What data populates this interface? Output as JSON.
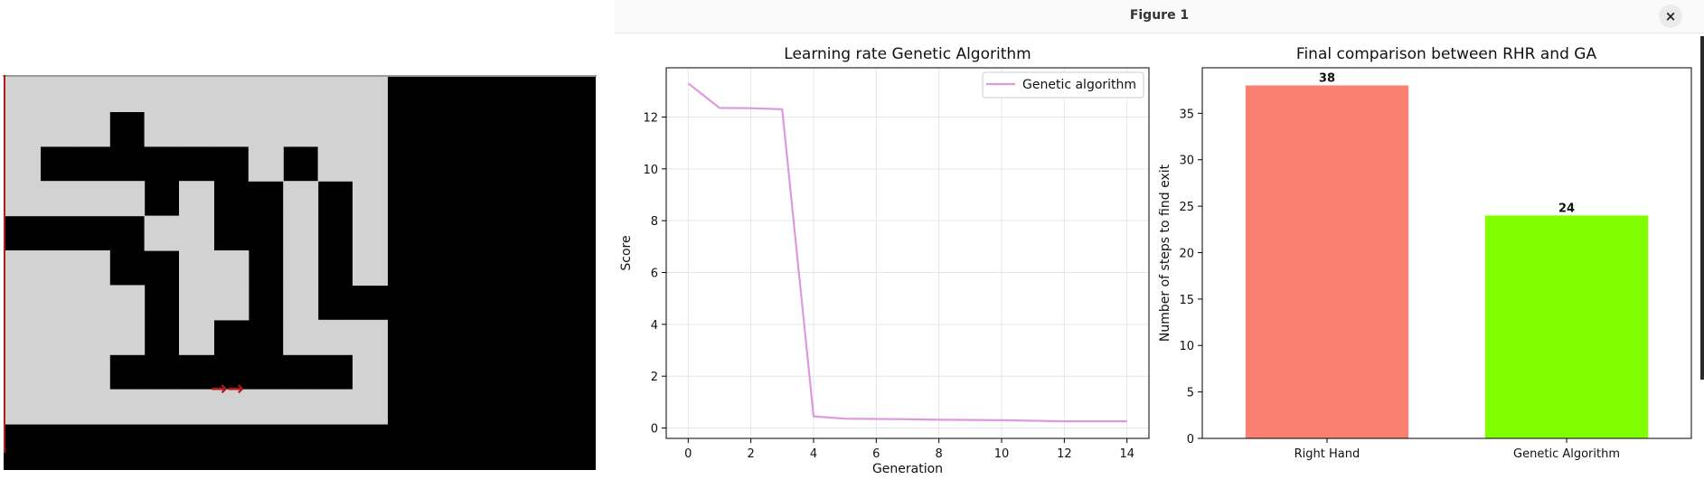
{
  "window": {
    "title": "Figure 1",
    "close_glyph": "×"
  },
  "maze": {
    "wall_color": "#000000",
    "path_color": "#d2d2d2",
    "arrow_color": "#b01818",
    "arrow_glyphs": "→→",
    "grid": [
      "0000000000011111",
      "0001000000011111",
      "0111111010011111",
      "0000101101011111",
      "1111001101011111",
      "0001100101011111",
      "0000100101111111",
      "0000101100011111",
      "0001111111011111",
      "0000000000011111",
      "1111111111111111"
    ]
  },
  "chart_data": [
    {
      "type": "line",
      "title": "Learning rate Genetic Algorithm",
      "xlabel": "Generation",
      "ylabel": "Score",
      "x": [
        0,
        1,
        2,
        3,
        4,
        5,
        6,
        7,
        8,
        9,
        10,
        11,
        12,
        13,
        14
      ],
      "series": [
        {
          "name": "Genetic algorithm",
          "color": "#dd99dd",
          "values": [
            13.3,
            12.35,
            12.34,
            12.3,
            0.45,
            0.36,
            0.35,
            0.34,
            0.32,
            0.31,
            0.3,
            0.28,
            0.26,
            0.26,
            0.26
          ]
        }
      ],
      "xlim": [
        -0.7,
        14.7
      ],
      "ylim": [
        -0.4,
        13.9
      ],
      "xticks": [
        0,
        2,
        4,
        6,
        8,
        10,
        12,
        14
      ],
      "yticks": [
        0,
        2,
        4,
        6,
        8,
        10,
        12
      ],
      "grid": true,
      "legend": "upper right"
    },
    {
      "type": "bar",
      "title": "Final comparison between RHR and GA",
      "xlabel": "",
      "ylabel": "Number of steps to find exit",
      "categories": [
        "Right Hand",
        "Genetic Algorithm"
      ],
      "values": [
        38,
        24
      ],
      "value_labels": [
        "38",
        "24"
      ],
      "colors": [
        "#fa8072",
        "#7fff00"
      ],
      "ylim": [
        0,
        39.9
      ],
      "yticks": [
        0,
        5,
        10,
        15,
        20,
        25,
        30,
        35
      ],
      "grid": false
    }
  ]
}
